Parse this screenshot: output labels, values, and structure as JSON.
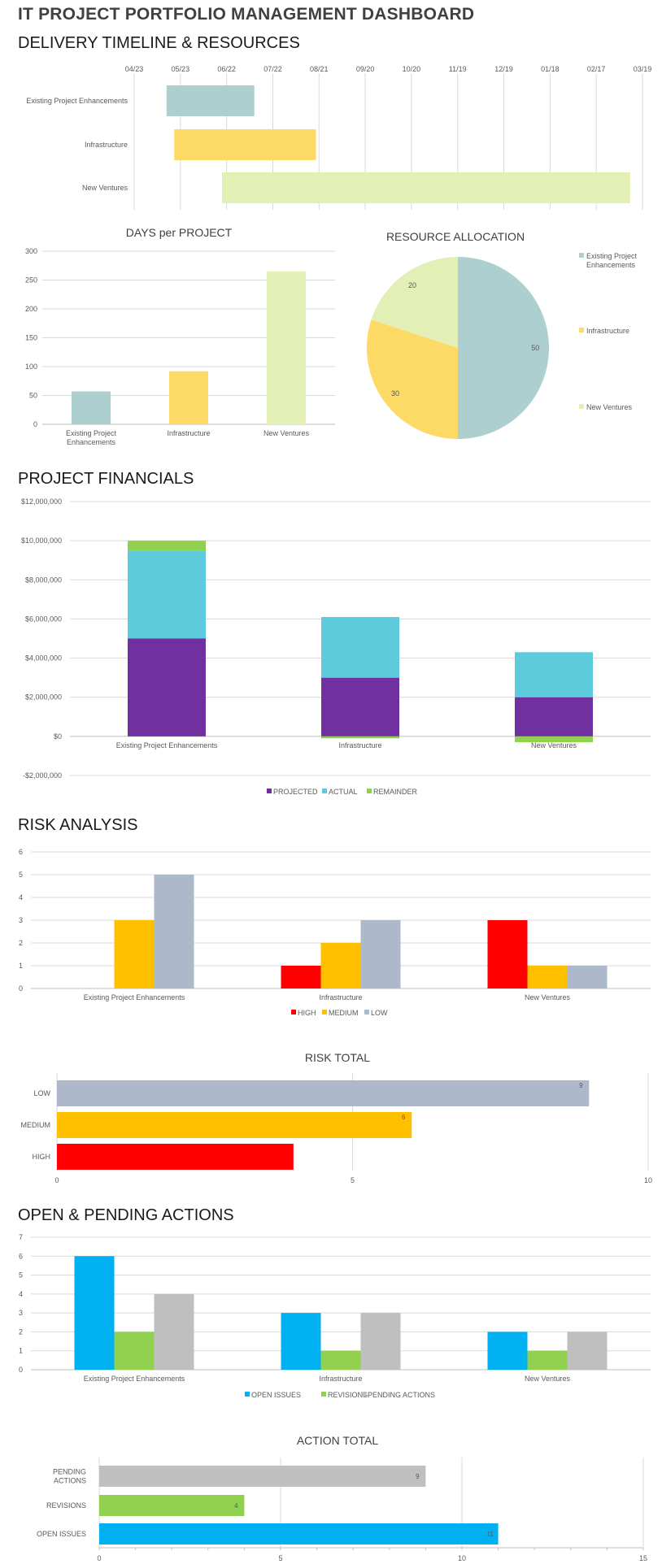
{
  "page": {
    "title": "IT PROJECT PORTFOLIO MANAGEMENT DASHBOARD",
    "sections": {
      "timeline": "DELIVERY TIMELINE & RESOURCES",
      "financials": "PROJECT FINANCIALS",
      "risk": "RISK ANALYSIS",
      "actions": "OPEN & PENDING ACTIONS"
    }
  },
  "colors": {
    "existing": "#aecfcf",
    "infrastructure": "#fdd966",
    "ventures": "#e2efb5",
    "projected": "#7030a0",
    "actual": "#5ecbdc",
    "remainder": "#92d050",
    "high": "#ff0000",
    "medium": "#ffc000",
    "low": "#adb9ca",
    "open": "#00b0f0",
    "revisions": "#92d050",
    "pending": "#bfbfbf"
  },
  "chart_data": [
    {
      "id": "timeline",
      "type": "bar",
      "orientation": "horizontal-gantt",
      "title": "",
      "x_tick_labels": [
        "04/23",
        "05/23",
        "06/22",
        "07/22",
        "08/21",
        "09/20",
        "10/20",
        "11/19",
        "12/19",
        "01/18",
        "02/17",
        "03/19"
      ],
      "categories": [
        "Existing Project Enhancements",
        "Infrastructure",
        "New Ventures"
      ],
      "start_offsets_days": [
        21,
        26,
        57
      ],
      "durations_days": [
        57,
        92,
        265
      ],
      "axis_days_range": [
        0,
        330
      ],
      "grid": true
    },
    {
      "id": "days",
      "type": "bar",
      "title": "DAYS per PROJECT",
      "categories": [
        "Existing Project Enhancements",
        "Infrastructure",
        "New Ventures"
      ],
      "category_lines": [
        [
          "Existing Project",
          "Enhancements"
        ],
        [
          "Infrastructure"
        ],
        [
          "New Ventures"
        ]
      ],
      "values": [
        57,
        92,
        265
      ],
      "ylim": [
        0,
        300
      ],
      "yticks": [
        0,
        50,
        100,
        150,
        200,
        250,
        300
      ],
      "grid": true
    },
    {
      "id": "resources",
      "type": "pie",
      "title": "RESOURCE ALLOCATION",
      "labels": [
        "Existing Project Enhancements",
        "Infrastructure",
        "New Ventures"
      ],
      "legend_lines": [
        [
          "Existing Project",
          "Enhancements"
        ],
        [
          "Infrastructure"
        ],
        [
          "New Ventures"
        ]
      ],
      "values": [
        50,
        30,
        20
      ],
      "legend": "right"
    },
    {
      "id": "financials",
      "type": "bar",
      "stacked": true,
      "title": "",
      "categories": [
        "Existing Project Enhancements",
        "Infrastructure",
        "New Ventures"
      ],
      "series": [
        {
          "name": "PROJECTED",
          "values": [
            5000000,
            3000000,
            2000000
          ]
        },
        {
          "name": "ACTUAL",
          "values": [
            4500000,
            3100000,
            2300000
          ]
        },
        {
          "name": "REMAINDER",
          "values": [
            500000,
            -100000,
            -300000
          ]
        }
      ],
      "ylim": [
        -2000000,
        12000000
      ],
      "yticks": [
        -2000000,
        0,
        2000000,
        4000000,
        6000000,
        8000000,
        10000000,
        12000000
      ],
      "ytick_labels": [
        "-$2,000,000",
        "$0",
        "$2,000,000",
        "$4,000,000",
        "$6,000,000",
        "$8,000,000",
        "$10,000,000",
        "$12,000,000"
      ],
      "legend": "bottom",
      "grid": true
    },
    {
      "id": "risk",
      "type": "bar",
      "title": "",
      "categories": [
        "Existing Project Enhancements",
        "Infrastructure",
        "New Ventures"
      ],
      "series": [
        {
          "name": "HIGH",
          "values": [
            0,
            1,
            3
          ]
        },
        {
          "name": "MEDIUM",
          "values": [
            3,
            2,
            1
          ]
        },
        {
          "name": "LOW",
          "values": [
            5,
            3,
            1
          ]
        }
      ],
      "ylim": [
        0,
        6
      ],
      "yticks": [
        0,
        1,
        2,
        3,
        4,
        5,
        6
      ],
      "legend": "bottom",
      "grid": true
    },
    {
      "id": "risk_total",
      "type": "bar",
      "orientation": "horizontal",
      "title": "RISK TOTAL",
      "categories": [
        "LOW",
        "MEDIUM",
        "HIGH"
      ],
      "values": [
        9,
        6,
        4
      ],
      "data_labels": [
        "9",
        "6",
        ""
      ],
      "xlim": [
        0,
        10
      ],
      "xticks": [
        0,
        5,
        10
      ],
      "grid": true
    },
    {
      "id": "actions",
      "type": "bar",
      "title": "",
      "categories": [
        "Existing Project Enhancements",
        "Infrastructure",
        "New Ventures"
      ],
      "series": [
        {
          "name": "OPEN ISSUES",
          "values": [
            6,
            3,
            2
          ]
        },
        {
          "name": "REVISIONS",
          "values": [
            2,
            1,
            1
          ]
        },
        {
          "name": "PENDING ACTIONS",
          "values": [
            4,
            3,
            2
          ]
        }
      ],
      "ylim": [
        0,
        7
      ],
      "yticks": [
        0,
        1,
        2,
        3,
        4,
        5,
        6,
        7
      ],
      "legend": "bottom",
      "grid": true
    },
    {
      "id": "action_total",
      "type": "bar",
      "orientation": "horizontal",
      "title": "ACTION TOTAL",
      "categories": [
        "PENDING ACTIONS",
        "REVISIONS",
        "OPEN ISSUES"
      ],
      "category_lines": [
        [
          "PENDING",
          "ACTIONS"
        ],
        [
          "REVISIONS"
        ],
        [
          "OPEN ISSUES"
        ]
      ],
      "values": [
        9,
        4,
        11
      ],
      "data_labels": [
        "9",
        "4",
        "11"
      ],
      "xlim": [
        0,
        15
      ],
      "xticks": [
        0,
        5,
        10,
        15
      ],
      "grid": true
    }
  ]
}
